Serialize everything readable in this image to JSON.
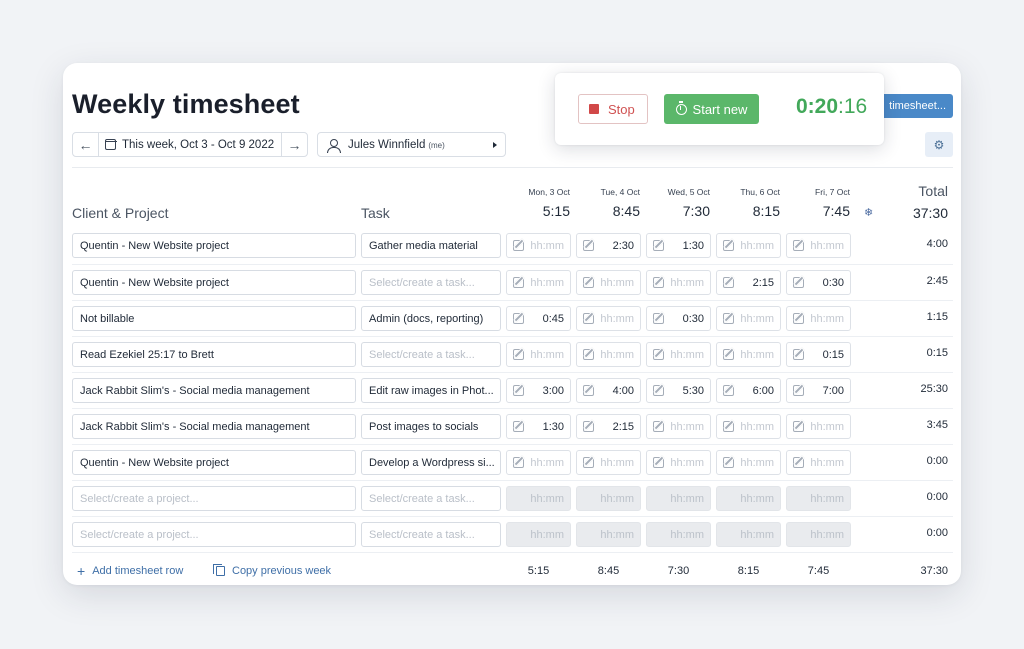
{
  "page": {
    "title": "Weekly timesheet",
    "timesheet_button_label": "timesheet...",
    "settings_icon": "gear-icon"
  },
  "week_nav": {
    "label": "This week, Oct 3 - Oct 9 2022",
    "prev_icon": "←",
    "next_icon": "→"
  },
  "user_select": {
    "name": "Jules Winnfield",
    "tag": "(me)"
  },
  "timer": {
    "stop_label": "Stop",
    "start_label": "Start new",
    "clock_main": "0:20",
    "clock_seconds": ":16"
  },
  "columns": {
    "project": "Client & Project",
    "task": "Task",
    "total": "Total",
    "days": [
      {
        "name": "Mon, 3 Oct",
        "total": "5:15"
      },
      {
        "name": "Tue, 4 Oct",
        "total": "8:45"
      },
      {
        "name": "Wed, 5 Oct",
        "total": "7:30"
      },
      {
        "name": "Thu, 6 Oct",
        "total": "8:15"
      },
      {
        "name": "Fri, 7 Oct",
        "total": "7:45"
      }
    ],
    "grand_total": "37:30"
  },
  "rows": [
    {
      "project": "Quentin - New Website project",
      "task": "Gather media material",
      "days": [
        "",
        "2:30",
        "1:30",
        "",
        ""
      ],
      "total": "4:00"
    },
    {
      "project": "Quentin - New Website project",
      "task": "",
      "days": [
        "",
        "",
        "",
        "2:15",
        "0:30"
      ],
      "total": "2:45"
    },
    {
      "project": "Not billable",
      "task": "Admin (docs, reporting)",
      "days": [
        "0:45",
        "",
        "0:30",
        "",
        ""
      ],
      "total": "1:15"
    },
    {
      "project": "Read Ezekiel 25:17 to Brett",
      "task": "",
      "days": [
        "",
        "",
        "",
        "",
        "0:15"
      ],
      "total": "0:15"
    },
    {
      "project": "Jack Rabbit Slim's - Social media management",
      "task": "Edit raw images in Phot...",
      "days": [
        "3:00",
        "4:00",
        "5:30",
        "6:00",
        "7:00"
      ],
      "total": "25:30"
    },
    {
      "project": "Jack Rabbit Slim's - Social media management",
      "task": "Post images to socials",
      "days": [
        "1:30",
        "2:15",
        "",
        "",
        ""
      ],
      "total": "3:45"
    },
    {
      "project": "Quentin - New Website project",
      "task": "Develop a Wordpress si...",
      "days": [
        "",
        "",
        "",
        "",
        ""
      ],
      "total": "0:00"
    },
    {
      "project": "",
      "task": "",
      "disabled": true,
      "days": [
        "",
        "",
        "",
        "",
        ""
      ],
      "total": "0:00"
    },
    {
      "project": "",
      "task": "",
      "disabled": true,
      "days": [
        "",
        "",
        "",
        "",
        ""
      ],
      "total": "0:00"
    }
  ],
  "placeholders": {
    "project": "Select/create a project...",
    "task": "Select/create a task...",
    "time": "hh:mm"
  },
  "footer": {
    "add_row_label": "Add timesheet row",
    "copy_week_label": "Copy previous week",
    "day_totals": [
      "5:15",
      "8:45",
      "7:30",
      "8:15",
      "7:45"
    ],
    "grand_total": "37:30"
  },
  "colors": {
    "accent_blue": "#4a89c8",
    "start_green": "#5bb76a",
    "stop_red": "#d14848",
    "timer_green": "#42a85a"
  }
}
